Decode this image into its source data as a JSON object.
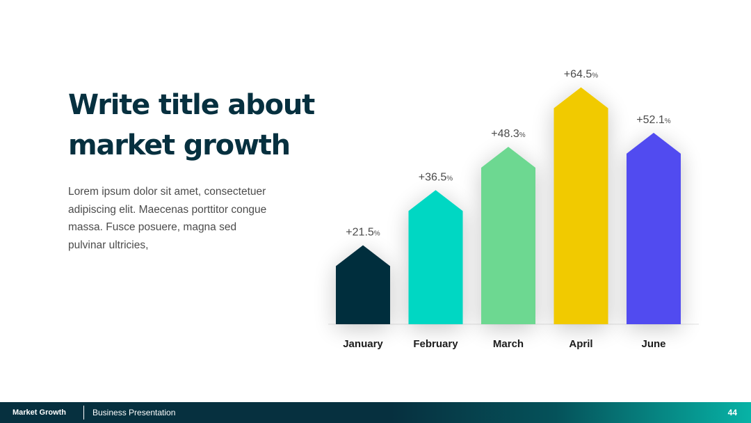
{
  "slide": {
    "title": "Write title about market growth",
    "body": "Lorem ipsum dolor sit amet, consectetuer adipiscing elit. Maecenas porttitor congue massa. Fusce posuere, magna sed pulvinar ultricies,"
  },
  "footer": {
    "section": "Market Growth",
    "subtitle": "Business Presentation",
    "page_number": "44"
  },
  "chart_data": {
    "type": "bar",
    "categories": [
      "January",
      "February",
      "March",
      "April",
      "June"
    ],
    "values": [
      21.5,
      36.5,
      48.3,
      64.5,
      52.1
    ],
    "value_prefix": "+",
    "value_suffix": "%",
    "title": "",
    "xlabel": "",
    "ylabel": "",
    "ylim": [
      0,
      70
    ],
    "grid": false,
    "legend": "none",
    "colors": [
      "#052e3e",
      "#00d7c3",
      "#6dd891",
      "#f1ca05",
      "#514bf0"
    ]
  }
}
